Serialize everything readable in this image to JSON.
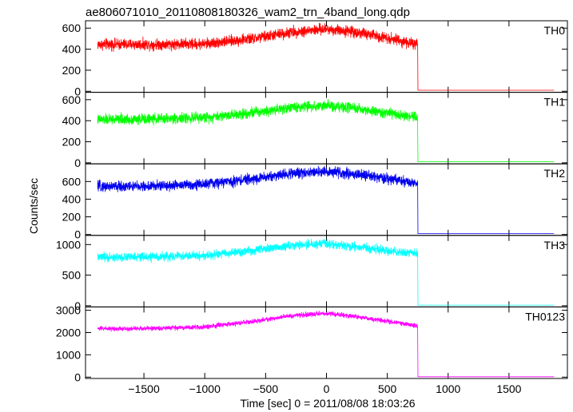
{
  "title": "ae806071010_20110808180326_wam2_trn_4band_long.qdp",
  "xlabel": "Time [sec] 0 = 2011/08/08 18:03:26",
  "ylabel": "Counts/sec",
  "chart_data": {
    "type": "line",
    "title": "ae806071010_20110808180326_wam2_trn_4band_long.qdp",
    "xlabel": "Time [sec] 0 = 2011/08/08 18:03:26",
    "ylabel": "Counts/sec",
    "xlim": [
      -1980,
      1980
    ],
    "xticks": [
      -1500,
      -1000,
      -500,
      0,
      500,
      1000,
      1500
    ],
    "data_x_range": [
      -1880,
      1870
    ],
    "cutoff_x": 750,
    "panels": [
      {
        "name": "TH0",
        "color": "#ff0000",
        "ylim": [
          -10,
          670
        ],
        "yticks": [
          0,
          200,
          400,
          600
        ],
        "x": [
          -1880,
          -1500,
          -1000,
          -600,
          -300,
          -100,
          0,
          200,
          500,
          700,
          750,
          760,
          1870
        ],
        "y": [
          445,
          445,
          450,
          500,
          560,
          580,
          590,
          570,
          510,
          455,
          440,
          10,
          10
        ],
        "noise": 40
      },
      {
        "name": "TH1",
        "color": "#00ff00",
        "ylim": [
          -10,
          670
        ],
        "yticks": [
          0,
          200,
          400,
          600
        ],
        "x": [
          -1880,
          -1500,
          -1000,
          -600,
          -300,
          -100,
          0,
          200,
          500,
          700,
          750,
          760,
          1870
        ],
        "y": [
          410,
          415,
          430,
          480,
          525,
          540,
          540,
          520,
          470,
          440,
          425,
          10,
          10
        ],
        "noise": 38
      },
      {
        "name": "TH2",
        "color": "#0000ee",
        "ylim": [
          -10,
          800
        ],
        "yticks": [
          0,
          200,
          400,
          600
        ],
        "x": [
          -1880,
          -1500,
          -1000,
          -600,
          -300,
          -100,
          0,
          200,
          500,
          700,
          750,
          760,
          1870
        ],
        "y": [
          545,
          545,
          570,
          630,
          690,
          710,
          710,
          690,
          630,
          585,
          570,
          10,
          10
        ],
        "noise": 45
      },
      {
        "name": "TH3",
        "color": "#00ffff",
        "ylim": [
          -20,
          1150
        ],
        "yticks": [
          0,
          500,
          1000
        ],
        "x": [
          -1880,
          -1500,
          -1000,
          -600,
          -300,
          -100,
          0,
          200,
          500,
          700,
          750,
          760,
          1870
        ],
        "y": [
          790,
          795,
          820,
          900,
          980,
          1010,
          1010,
          970,
          900,
          860,
          845,
          10,
          10
        ],
        "noise": 55
      },
      {
        "name": "TH0123",
        "color": "#ff00ff",
        "ylim": [
          -60,
          3150
        ],
        "yticks": [
          0,
          1000,
          2000,
          3000
        ],
        "x": [
          -1880,
          -1500,
          -1000,
          -600,
          -300,
          -100,
          0,
          200,
          500,
          700,
          750,
          760,
          1870
        ],
        "y": [
          2180,
          2180,
          2250,
          2500,
          2750,
          2830,
          2850,
          2750,
          2520,
          2330,
          2290,
          20,
          20
        ],
        "noise": 80
      }
    ]
  }
}
